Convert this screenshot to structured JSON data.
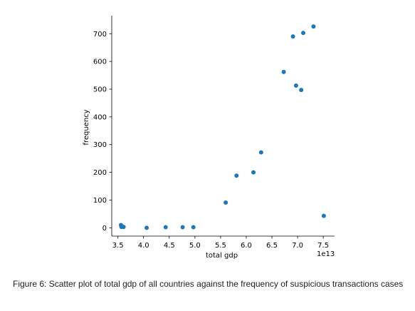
{
  "chart_data": {
    "type": "scatter",
    "title": "",
    "xlabel": "total gdp",
    "ylabel": "frequency",
    "x_offset_label": "1e13",
    "xlim": [
      3.38,
      7.72
    ],
    "ylim": [
      -30,
      765
    ],
    "xticks": [
      3.5,
      4.0,
      4.5,
      5.0,
      5.5,
      6.0,
      6.5,
      7.0,
      7.5
    ],
    "xtick_labels": [
      "3.5",
      "4.0",
      "4.5",
      "5.0",
      "5.5",
      "6.0",
      "6.5",
      "7.0",
      "7.5"
    ],
    "yticks": [
      0,
      100,
      200,
      300,
      400,
      500,
      600,
      700
    ],
    "ytick_labels": [
      "0",
      "100",
      "200",
      "300",
      "400",
      "500",
      "600",
      "700"
    ],
    "grid": false,
    "color": "#1f77b4",
    "points": [
      {
        "x": 3.56,
        "y": 10
      },
      {
        "x": 3.57,
        "y": 3
      },
      {
        "x": 3.61,
        "y": 3
      },
      {
        "x": 4.06,
        "y": 0
      },
      {
        "x": 4.43,
        "y": 2
      },
      {
        "x": 4.76,
        "y": 2
      },
      {
        "x": 4.97,
        "y": 2
      },
      {
        "x": 5.6,
        "y": 91
      },
      {
        "x": 5.81,
        "y": 188
      },
      {
        "x": 6.14,
        "y": 200
      },
      {
        "x": 6.29,
        "y": 272
      },
      {
        "x": 6.73,
        "y": 562
      },
      {
        "x": 6.91,
        "y": 690
      },
      {
        "x": 6.97,
        "y": 513
      },
      {
        "x": 7.07,
        "y": 497
      },
      {
        "x": 7.11,
        "y": 703
      },
      {
        "x": 7.31,
        "y": 726
      },
      {
        "x": 7.51,
        "y": 43
      }
    ]
  },
  "caption": "Figure 6: Scatter plot of total gdp of all countries against the frequency of suspicious transactions cases"
}
